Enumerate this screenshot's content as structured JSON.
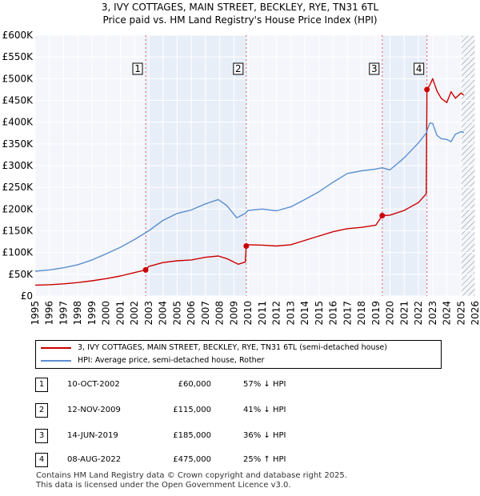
{
  "title_line1": "3, IVY COTTAGES, MAIN STREET, BECKLEY, RYE, TN31 6TL",
  "title_line2": "Price paid vs. HM Land Registry's House Price Index (HPI)",
  "colors": {
    "price_line": "#cc0000",
    "hpi_line": "#5b8fd0",
    "shade": "#e8eef8",
    "grid": "#ffffff",
    "plot_bg": "#f4f6fb"
  },
  "chart_data": {
    "type": "line",
    "title": "3, IVY COTTAGES, MAIN STREET, BECKLEY, RYE, TN31 6TL — Price paid vs. HM Land Registry's House Price Index (HPI)",
    "xlabel": "",
    "ylabel": "",
    "xlim": [
      1995,
      2026
    ],
    "ylim": [
      0,
      600000
    ],
    "y_ticks": [
      0,
      50000,
      100000,
      150000,
      200000,
      250000,
      300000,
      350000,
      400000,
      450000,
      500000,
      550000,
      600000
    ],
    "y_tick_labels": [
      "£0",
      "£50K",
      "£100K",
      "£150K",
      "£200K",
      "£250K",
      "£300K",
      "£350K",
      "£400K",
      "£450K",
      "£500K",
      "£550K",
      "£600K"
    ],
    "x_ticks": [
      1995,
      1996,
      1997,
      1998,
      1999,
      2000,
      2001,
      2002,
      2003,
      2004,
      2005,
      2006,
      2007,
      2008,
      2009,
      2010,
      2011,
      2012,
      2013,
      2014,
      2015,
      2016,
      2017,
      2018,
      2019,
      2020,
      2021,
      2022,
      2023,
      2024,
      2025,
      2026
    ],
    "x_tick_labels": [
      "1995",
      "1996",
      "1997",
      "1998",
      "1999",
      "2000",
      "2001",
      "2002",
      "2003",
      "2004",
      "2005",
      "2006",
      "2007",
      "2008",
      "2009",
      "2010",
      "2011",
      "2012",
      "2013",
      "2014",
      "2015",
      "2016",
      "2017",
      "2018",
      "2019",
      "2020",
      "2021",
      "2022",
      "2023",
      "2024",
      "2025",
      "2026"
    ],
    "grid": true,
    "shaded_periods": [
      [
        2002.78,
        2009.87
      ],
      [
        2019.45,
        2022.6
      ]
    ],
    "hatched_after": 2025.0,
    "series": [
      {
        "name": "3, IVY COTTAGES, MAIN STREET, BECKLEY, RYE, TN31 6TL (semi-detached house)",
        "color": "#cc0000",
        "x": [
          1995,
          1996,
          1997,
          1998,
          1999,
          2000,
          2001,
          2002,
          2002.78,
          2003,
          2004,
          2005,
          2006,
          2007,
          2007.9,
          2008.5,
          2009.3,
          2009.8,
          2009.87,
          2010,
          2011,
          2012,
          2013,
          2014,
          2015,
          2016,
          2017,
          2018,
          2019,
          2019.45,
          2020,
          2021,
          2022,
          2022.55,
          2022.6,
          2022.8,
          2023,
          2023.3,
          2023.6,
          2024,
          2024.3,
          2024.6,
          2025,
          2025.2
        ],
        "y": [
          25000,
          26000,
          28000,
          31000,
          35000,
          40000,
          46000,
          54000,
          60000,
          68000,
          77000,
          81000,
          83000,
          89000,
          92000,
          86000,
          73000,
          78000,
          115000,
          118000,
          117000,
          115000,
          118000,
          128000,
          138000,
          148000,
          155000,
          158000,
          163000,
          185000,
          186000,
          197000,
          215000,
          235000,
          475000,
          485000,
          500000,
          472000,
          455000,
          445000,
          470000,
          455000,
          467000,
          462000
        ]
      },
      {
        "name": "HPI: Average price, semi-detached house, Rother",
        "color": "#5b8fd0",
        "x": [
          1995,
          1996,
          1997,
          1998,
          1999,
          2000,
          2001,
          2002,
          2003,
          2004,
          2005,
          2006,
          2007,
          2007.9,
          2008.5,
          2009.2,
          2009.8,
          2010,
          2011,
          2012,
          2013,
          2014,
          2015,
          2016,
          2017,
          2018,
          2019,
          2019.45,
          2020,
          2021,
          2022,
          2022.55,
          2022.8,
          2023,
          2023.3,
          2023.6,
          2024,
          2024.3,
          2024.6,
          2025,
          2025.2
        ],
        "y": [
          57000,
          60000,
          65000,
          72000,
          83000,
          97000,
          112000,
          130000,
          150000,
          174000,
          190000,
          198000,
          212000,
          222000,
          208000,
          180000,
          190000,
          197000,
          200000,
          196000,
          205000,
          222000,
          240000,
          262000,
          282000,
          288000,
          292000,
          295000,
          290000,
          318000,
          352000,
          375000,
          398000,
          397000,
          370000,
          362000,
          360000,
          355000,
          372000,
          378000,
          376000
        ]
      }
    ],
    "sale_markers": [
      {
        "label": "1",
        "x": 2002.78,
        "y": 60000
      },
      {
        "label": "2",
        "x": 2009.87,
        "y": 115000
      },
      {
        "label": "3",
        "x": 2019.45,
        "y": 185000
      },
      {
        "label": "4",
        "x": 2022.6,
        "y": 475000
      }
    ]
  },
  "legend": {
    "price_label": "3, IVY COTTAGES, MAIN STREET, BECKLEY, RYE, TN31 6TL (semi-detached house)",
    "hpi_label": "HPI: Average price, semi-detached house, Rother"
  },
  "sales": [
    {
      "num": "1",
      "date": "10-OCT-2002",
      "price": "£60,000",
      "hpi": "57% ↓ HPI"
    },
    {
      "num": "2",
      "date": "12-NOV-2009",
      "price": "£115,000",
      "hpi": "41% ↓ HPI"
    },
    {
      "num": "3",
      "date": "14-JUN-2019",
      "price": "£185,000",
      "hpi": "36% ↓ HPI"
    },
    {
      "num": "4",
      "date": "08-AUG-2022",
      "price": "£475,000",
      "hpi": "25% ↑ HPI"
    }
  ],
  "footer": {
    "line1": "Contains HM Land Registry data © Crown copyright and database right 2025.",
    "line2": "This data is licensed under the Open Government Licence v3.0."
  }
}
